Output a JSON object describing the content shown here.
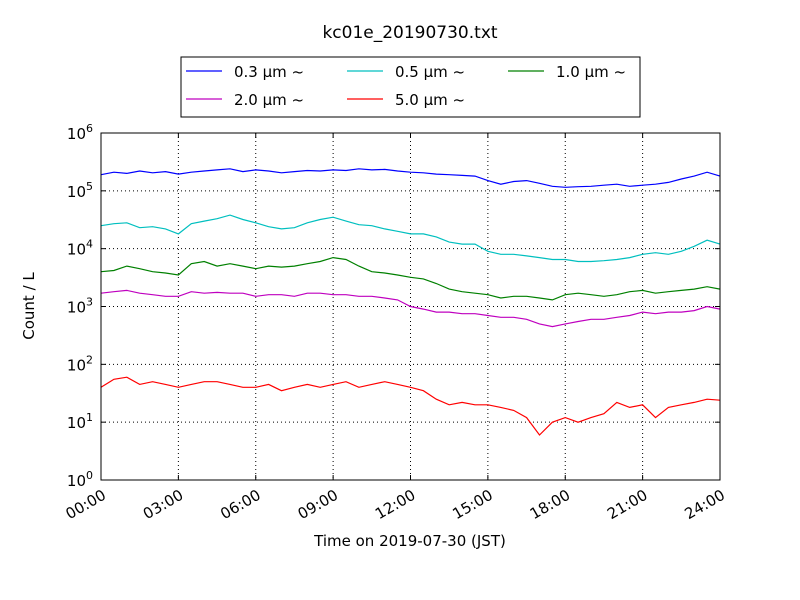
{
  "chart_data": {
    "type": "line",
    "title": "kc01e_20190730.txt",
    "xlabel": "Time on 2019-07-30 (JST)",
    "ylabel": "Count / L",
    "x_range": [
      "00:00",
      "24:00"
    ],
    "ylim": [
      1,
      1000000
    ],
    "yscale": "log",
    "grid": true,
    "legend_position": "top-center",
    "x_ticks": [
      "00:00",
      "03:00",
      "06:00",
      "09:00",
      "12:00",
      "15:00",
      "18:00",
      "21:00",
      "24:00"
    ],
    "y_ticks": [
      {
        "base": "10",
        "exp": "0"
      },
      {
        "base": "10",
        "exp": "1"
      },
      {
        "base": "10",
        "exp": "2"
      },
      {
        "base": "10",
        "exp": "3"
      },
      {
        "base": "10",
        "exp": "4"
      },
      {
        "base": "10",
        "exp": "5"
      },
      {
        "base": "10",
        "exp": "6"
      }
    ],
    "x_hours": [
      0,
      0.5,
      1,
      1.5,
      2,
      2.5,
      3,
      3.5,
      4,
      4.5,
      5,
      5.5,
      6,
      6.5,
      7,
      7.5,
      8,
      8.5,
      9,
      9.5,
      10,
      10.5,
      11,
      11.5,
      12,
      12.5,
      13,
      13.5,
      14,
      14.5,
      15,
      15.5,
      16,
      16.5,
      17,
      17.5,
      18,
      18.5,
      19,
      19.5,
      20,
      20.5,
      21,
      21.5,
      22,
      22.5,
      23,
      23.5,
      24
    ],
    "series": [
      {
        "name": "0.3 μm ~",
        "color": "#0000ff",
        "values": [
          190000,
          210000,
          200000,
          220000,
          205000,
          215000,
          195000,
          210000,
          220000,
          230000,
          240000,
          215000,
          230000,
          220000,
          205000,
          215000,
          225000,
          220000,
          230000,
          225000,
          240000,
          230000,
          235000,
          220000,
          210000,
          205000,
          195000,
          190000,
          185000,
          180000,
          150000,
          130000,
          145000,
          150000,
          135000,
          120000,
          115000,
          118000,
          120000,
          125000,
          130000,
          120000,
          125000,
          130000,
          140000,
          160000,
          180000,
          210000,
          180000
        ]
      },
      {
        "name": "0.5 μm ~",
        "color": "#00bfbf",
        "values": [
          25000,
          27000,
          28000,
          23000,
          24000,
          22000,
          18000,
          27000,
          30000,
          33000,
          38000,
          32000,
          28000,
          24000,
          22000,
          23000,
          28000,
          32000,
          35000,
          30000,
          26000,
          25000,
          22000,
          20000,
          18000,
          18000,
          16000,
          13000,
          12000,
          12000,
          9000,
          8000,
          8000,
          7500,
          7000,
          6500,
          6500,
          6000,
          6000,
          6200,
          6500,
          7000,
          8000,
          8500,
          8000,
          9000,
          11000,
          14000,
          12000
        ]
      },
      {
        "name": "1.0 μm ~",
        "color": "#008000",
        "values": [
          4000,
          4200,
          5000,
          4500,
          4000,
          3800,
          3500,
          5500,
          6000,
          5000,
          5500,
          5000,
          4500,
          5000,
          4800,
          5000,
          5500,
          6000,
          7000,
          6500,
          5000,
          4000,
          3800,
          3500,
          3200,
          3000,
          2500,
          2000,
          1800,
          1700,
          1600,
          1400,
          1500,
          1500,
          1400,
          1300,
          1600,
          1700,
          1600,
          1500,
          1600,
          1800,
          1900,
          1700,
          1800,
          1900,
          2000,
          2200,
          2000
        ]
      },
      {
        "name": "2.0 μm ~",
        "color": "#bf00bf",
        "values": [
          1700,
          1800,
          1900,
          1700,
          1600,
          1500,
          1500,
          1800,
          1700,
          1750,
          1700,
          1700,
          1500,
          1600,
          1600,
          1500,
          1700,
          1700,
          1600,
          1600,
          1500,
          1500,
          1400,
          1300,
          1000,
          900,
          800,
          800,
          750,
          750,
          700,
          650,
          650,
          600,
          500,
          450,
          500,
          550,
          600,
          600,
          650,
          700,
          800,
          750,
          800,
          800,
          850,
          1000,
          900
        ]
      },
      {
        "name": "5.0 μm ~",
        "color": "#ff0000",
        "values": [
          40,
          55,
          60,
          45,
          50,
          45,
          40,
          45,
          50,
          50,
          45,
          40,
          40,
          45,
          35,
          40,
          45,
          40,
          45,
          50,
          40,
          45,
          50,
          45,
          40,
          35,
          25,
          20,
          22,
          20,
          20,
          18,
          16,
          12,
          6,
          10,
          12,
          10,
          12,
          14,
          22,
          18,
          20,
          12,
          18,
          20,
          22,
          25,
          24
        ]
      }
    ]
  }
}
